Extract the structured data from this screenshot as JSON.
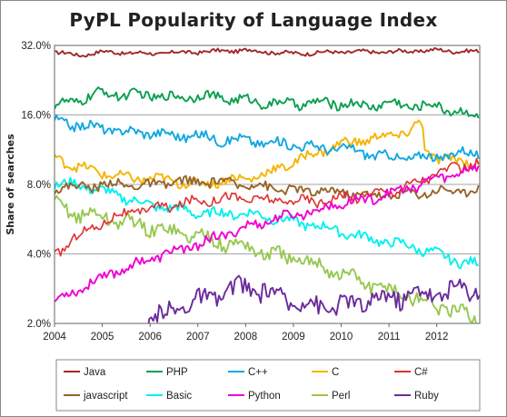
{
  "chart_data": {
    "type": "line",
    "title": "PyPL Popularity of Language Index",
    "ylabel": "Share of searches",
    "y_scale": "log2",
    "ylim": [
      2.0,
      32.0
    ],
    "y_ticks": [
      "32.0%",
      "16.0%",
      "8.0%",
      "4.0%",
      "2.0%"
    ],
    "y_tick_values": [
      32,
      16,
      8,
      4,
      2
    ],
    "xlim": [
      2004,
      2012.9
    ],
    "x_ticks": [
      "2004",
      "2005",
      "2006",
      "2007",
      "2008",
      "2009",
      "2010",
      "2011",
      "2012"
    ],
    "x_tick_values": [
      2004,
      2005,
      2006,
      2007,
      2008,
      2009,
      2010,
      2011,
      2012
    ],
    "grid": "horizontal",
    "legend": "bottom",
    "series": [
      {
        "name": "Java",
        "color": "#a02828",
        "points": [
          [
            2004.0,
            30.0
          ],
          [
            2004.5,
            29.0
          ],
          [
            2005.0,
            30.0
          ],
          [
            2006.0,
            29.5
          ],
          [
            2007.0,
            30.0
          ],
          [
            2008.0,
            30.5
          ],
          [
            2009.0,
            29.5
          ],
          [
            2010.0,
            30.0
          ],
          [
            2011.0,
            30.0
          ],
          [
            2012.0,
            30.5
          ],
          [
            2012.9,
            30.0
          ]
        ]
      },
      {
        "name": "PHP",
        "color": "#0aa050",
        "points": [
          [
            2004.0,
            17.5
          ],
          [
            2004.5,
            18.5
          ],
          [
            2005.0,
            20.0
          ],
          [
            2005.5,
            19.5
          ],
          [
            2006.0,
            19.5
          ],
          [
            2006.5,
            19.0
          ],
          [
            2007.0,
            19.5
          ],
          [
            2007.5,
            19.0
          ],
          [
            2008.0,
            18.5
          ],
          [
            2008.5,
            18.0
          ],
          [
            2009.0,
            18.0
          ],
          [
            2009.5,
            18.0
          ],
          [
            2010.0,
            18.0
          ],
          [
            2010.5,
            17.5
          ],
          [
            2011.0,
            18.0
          ],
          [
            2011.5,
            17.5
          ],
          [
            2012.0,
            17.5
          ],
          [
            2012.5,
            16.5
          ],
          [
            2012.9,
            15.5
          ]
        ]
      },
      {
        "name": "C++",
        "color": "#10a8e0",
        "points": [
          [
            2004.0,
            15.0
          ],
          [
            2004.5,
            14.5
          ],
          [
            2005.0,
            14.0
          ],
          [
            2005.5,
            13.5
          ],
          [
            2006.0,
            13.5
          ],
          [
            2006.5,
            13.0
          ],
          [
            2007.0,
            13.0
          ],
          [
            2007.5,
            12.5
          ],
          [
            2008.0,
            12.5
          ],
          [
            2008.5,
            12.0
          ],
          [
            2009.0,
            12.0
          ],
          [
            2009.5,
            11.5
          ],
          [
            2010.0,
            11.5
          ],
          [
            2010.5,
            11.0
          ],
          [
            2011.0,
            10.5
          ],
          [
            2011.5,
            10.5
          ],
          [
            2012.0,
            10.5
          ],
          [
            2012.5,
            11.0
          ],
          [
            2012.9,
            11.0
          ]
        ]
      },
      {
        "name": "C",
        "color": "#f5b400",
        "points": [
          [
            2004.0,
            10.5
          ],
          [
            2004.5,
            9.5
          ],
          [
            2005.0,
            9.0
          ],
          [
            2005.5,
            8.5
          ],
          [
            2006.0,
            8.5
          ],
          [
            2006.5,
            8.3
          ],
          [
            2007.0,
            8.0
          ],
          [
            2007.5,
            8.3
          ],
          [
            2008.0,
            8.5
          ],
          [
            2008.5,
            9.0
          ],
          [
            2009.0,
            10.0
          ],
          [
            2009.5,
            11.0
          ],
          [
            2010.0,
            12.0
          ],
          [
            2010.5,
            12.5
          ],
          [
            2011.0,
            13.0
          ],
          [
            2011.4,
            13.5
          ],
          [
            2011.6,
            14.5
          ],
          [
            2011.7,
            15.0
          ],
          [
            2011.75,
            11.0
          ],
          [
            2012.0,
            10.5
          ],
          [
            2012.5,
            10.0
          ],
          [
            2012.9,
            10.0
          ]
        ]
      },
      {
        "name": "C#",
        "color": "#e03030",
        "points": [
          [
            2004.0,
            4.0
          ],
          [
            2004.5,
            4.8
          ],
          [
            2005.0,
            5.5
          ],
          [
            2005.5,
            6.0
          ],
          [
            2006.0,
            6.3
          ],
          [
            2006.5,
            6.5
          ],
          [
            2007.0,
            6.8
          ],
          [
            2007.5,
            7.0
          ],
          [
            2008.0,
            7.0
          ],
          [
            2008.5,
            6.8
          ],
          [
            2009.0,
            6.8
          ],
          [
            2009.5,
            6.8
          ],
          [
            2010.0,
            7.0
          ],
          [
            2010.5,
            7.2
          ],
          [
            2011.0,
            7.5
          ],
          [
            2011.5,
            8.0
          ],
          [
            2012.0,
            9.0
          ],
          [
            2012.5,
            9.5
          ],
          [
            2012.9,
            10.0
          ]
        ]
      },
      {
        "name": "javascript",
        "color": "#96642a",
        "points": [
          [
            2004.0,
            7.8
          ],
          [
            2004.5,
            7.8
          ],
          [
            2005.0,
            8.0
          ],
          [
            2005.5,
            8.0
          ],
          [
            2006.0,
            7.9
          ],
          [
            2006.5,
            8.2
          ],
          [
            2007.0,
            8.2
          ],
          [
            2007.5,
            8.2
          ],
          [
            2008.0,
            8.0
          ],
          [
            2008.5,
            7.8
          ],
          [
            2009.0,
            7.5
          ],
          [
            2009.5,
            7.5
          ],
          [
            2010.0,
            7.4
          ],
          [
            2010.5,
            7.2
          ],
          [
            2011.0,
            7.2
          ],
          [
            2011.5,
            7.3
          ],
          [
            2012.0,
            7.5
          ],
          [
            2012.5,
            7.5
          ],
          [
            2012.9,
            7.6
          ]
        ]
      },
      {
        "name": "Basic",
        "color": "#00f0f0",
        "points": [
          [
            2004.0,
            8.0
          ],
          [
            2004.5,
            8.0
          ],
          [
            2005.0,
            7.5
          ],
          [
            2005.5,
            7.0
          ],
          [
            2006.0,
            6.5
          ],
          [
            2006.5,
            6.3
          ],
          [
            2007.0,
            6.0
          ],
          [
            2007.5,
            6.0
          ],
          [
            2008.0,
            6.0
          ],
          [
            2008.5,
            5.8
          ],
          [
            2009.0,
            5.5
          ],
          [
            2009.5,
            5.3
          ],
          [
            2010.0,
            5.0
          ],
          [
            2010.5,
            4.7
          ],
          [
            2011.0,
            4.5
          ],
          [
            2011.5,
            4.3
          ],
          [
            2012.0,
            4.0
          ],
          [
            2012.5,
            3.7
          ],
          [
            2012.9,
            3.6
          ]
        ]
      },
      {
        "name": "Python",
        "color": "#f000d2",
        "points": [
          [
            2004.0,
            2.5
          ],
          [
            2004.5,
            2.8
          ],
          [
            2005.0,
            3.2
          ],
          [
            2005.5,
            3.5
          ],
          [
            2006.0,
            3.8
          ],
          [
            2006.5,
            4.1
          ],
          [
            2007.0,
            4.4
          ],
          [
            2007.5,
            4.8
          ],
          [
            2008.0,
            5.2
          ],
          [
            2008.5,
            5.6
          ],
          [
            2009.0,
            5.9
          ],
          [
            2009.5,
            6.2
          ],
          [
            2010.0,
            6.6
          ],
          [
            2010.5,
            6.9
          ],
          [
            2011.0,
            7.3
          ],
          [
            2011.5,
            7.8
          ],
          [
            2012.0,
            8.5
          ],
          [
            2012.5,
            9.0
          ],
          [
            2012.9,
            9.5
          ]
        ]
      },
      {
        "name": "Perl",
        "color": "#96c850",
        "points": [
          [
            2004.0,
            6.5
          ],
          [
            2004.5,
            6.0
          ],
          [
            2005.0,
            5.8
          ],
          [
            2005.5,
            5.5
          ],
          [
            2006.0,
            5.2
          ],
          [
            2006.5,
            5.0
          ],
          [
            2007.0,
            4.8
          ],
          [
            2007.5,
            4.5
          ],
          [
            2008.0,
            4.3
          ],
          [
            2008.5,
            4.0
          ],
          [
            2009.0,
            3.8
          ],
          [
            2009.5,
            3.6
          ],
          [
            2010.0,
            3.3
          ],
          [
            2010.5,
            3.0
          ],
          [
            2011.0,
            2.8
          ],
          [
            2011.5,
            2.6
          ],
          [
            2012.0,
            2.4
          ],
          [
            2012.5,
            2.2
          ],
          [
            2012.9,
            2.1
          ]
        ]
      },
      {
        "name": "Ruby",
        "color": "#6a2b9c",
        "points": [
          [
            2005.9,
            1.9
          ],
          [
            2006.0,
            2.0
          ],
          [
            2006.3,
            2.2
          ],
          [
            2006.6,
            2.4
          ],
          [
            2007.0,
            2.5
          ],
          [
            2007.5,
            2.7
          ],
          [
            2008.0,
            2.9
          ],
          [
            2008.5,
            2.7
          ],
          [
            2009.0,
            2.5
          ],
          [
            2009.5,
            2.4
          ],
          [
            2010.0,
            2.4
          ],
          [
            2010.5,
            2.5
          ],
          [
            2011.0,
            2.6
          ],
          [
            2011.5,
            2.7
          ],
          [
            2012.0,
            2.7
          ],
          [
            2012.5,
            2.8
          ],
          [
            2012.9,
            2.9
          ]
        ]
      }
    ]
  }
}
